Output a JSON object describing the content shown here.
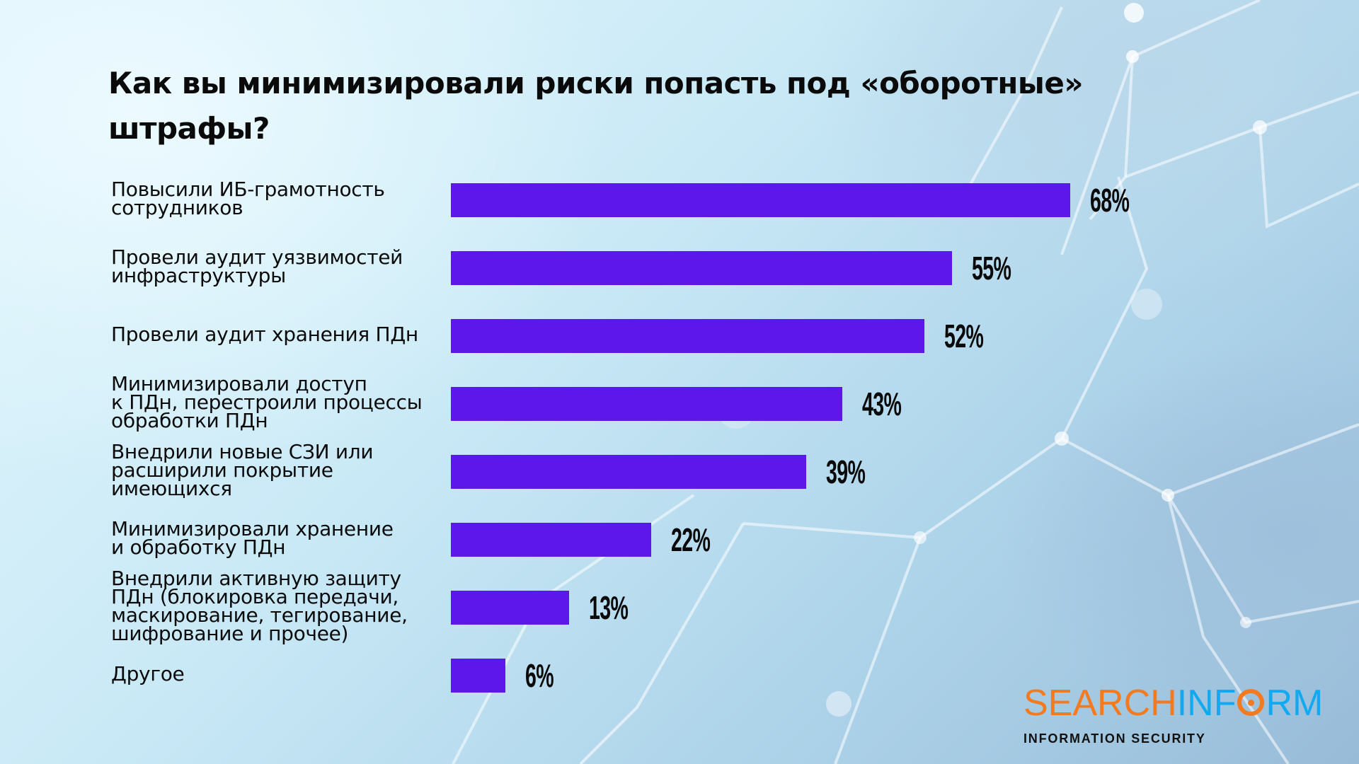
{
  "chart_data": {
    "type": "bar",
    "orientation": "horizontal",
    "title": "Как вы минимизировали риски попасть под «оборотные» штрафы?",
    "categories": [
      "Повысили ИБ-грамотность сотрудников",
      "Провели аудит уязвимостей инфраструктуры",
      "Провели аудит хранения ПДн",
      "Минимизировали доступ к ПДн, перестроили процессы обработки ПДн",
      "Внедрили новые СЗИ или расширили покрытие имеющихся",
      "Минимизировали хранение и обработку ПДн",
      "Внедрили активную защиту ПДн (блокировка передачи, маскирование, тегирование, шифрование и прочее)",
      "Другое"
    ],
    "category_lines": [
      [
        "Повысили ИБ-грамотность",
        "сотрудников"
      ],
      [
        "Провели аудит уязвимостей",
        "инфраструктуры"
      ],
      [
        "Провели аудит хранения ПДн"
      ],
      [
        "Минимизировали доступ",
        "к ПДн, перестроили процессы",
        "обработки ПДн"
      ],
      [
        "Внедрили новые СЗИ или",
        "расширили покрытие",
        "имеющихся"
      ],
      [
        "Минимизировали хранение",
        "и обработку ПДн"
      ],
      [
        "Внедрили активную защиту",
        "ПДн (блокировка передачи,",
        "маскирование, тегирование,",
        "шифрование и прочее)"
      ],
      [
        "Другое"
      ]
    ],
    "values": [
      68,
      55,
      52,
      43,
      39,
      22,
      13,
      6
    ],
    "value_labels": [
      "68%",
      "55%",
      "52%",
      "43%",
      "39%",
      "22%",
      "13%",
      "6%"
    ],
    "unit": "%",
    "xlabel": "",
    "ylabel": "",
    "xlim": [
      0,
      100
    ],
    "grid": false,
    "legend": "none",
    "bar_color": "#5e17eb"
  },
  "title_lines": [
    "Как вы минимизировали риски попасть под «оборотные»",
    "штрафы?"
  ],
  "logo": {
    "part1": "SEARCH",
    "part2": "INF",
    "part3": "RM",
    "subtitle": "INFORMATION SECURITY",
    "orange": "#f47a20",
    "blue": "#12a9f0"
  }
}
